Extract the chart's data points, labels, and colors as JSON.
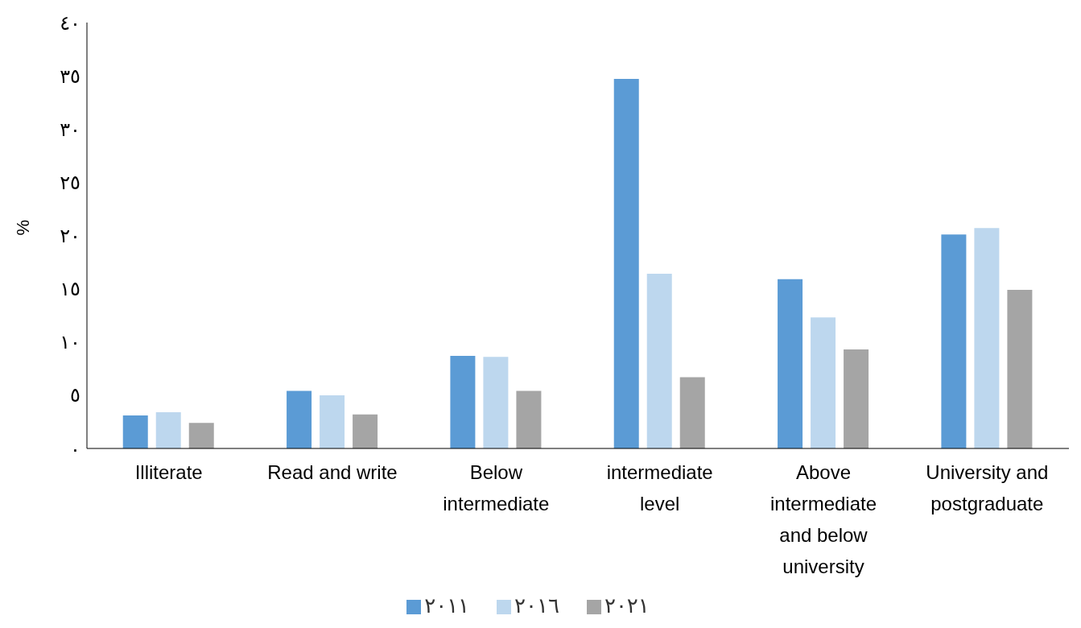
{
  "chart_data": {
    "type": "bar",
    "ylabel": "%",
    "categories": [
      "Illiterate",
      "Read and write",
      "Below intermediate",
      "intermediate level",
      "Above intermediate and below university",
      "University and postgraduate"
    ],
    "series": [
      {
        "name": "٢٠١١",
        "color": "#5b9bd5",
        "values": [
          3.1,
          5.4,
          8.7,
          34.7,
          15.9,
          20.1
        ]
      },
      {
        "name": "٢٠١٦",
        "color": "#bdd7ee",
        "values": [
          3.4,
          5.0,
          8.6,
          16.4,
          12.3,
          20.7
        ]
      },
      {
        "name": "٢٠٢١",
        "color": "#a5a5a5",
        "values": [
          2.4,
          3.2,
          5.4,
          6.7,
          9.3,
          14.9
        ]
      }
    ],
    "ylim": [
      0,
      40
    ],
    "yticks": [
      {
        "value": 0,
        "label": "٠"
      },
      {
        "value": 5,
        "label": "٥"
      },
      {
        "value": 10,
        "label": "١٠"
      },
      {
        "value": 15,
        "label": "١٥"
      },
      {
        "value": 20,
        "label": "٢٠"
      },
      {
        "value": 25,
        "label": "٢٥"
      },
      {
        "value": 30,
        "label": "٣٠"
      },
      {
        "value": 35,
        "label": "٣٥"
      },
      {
        "value": 40,
        "label": "٤٠"
      }
    ],
    "grid": false,
    "legend": "bottom"
  }
}
